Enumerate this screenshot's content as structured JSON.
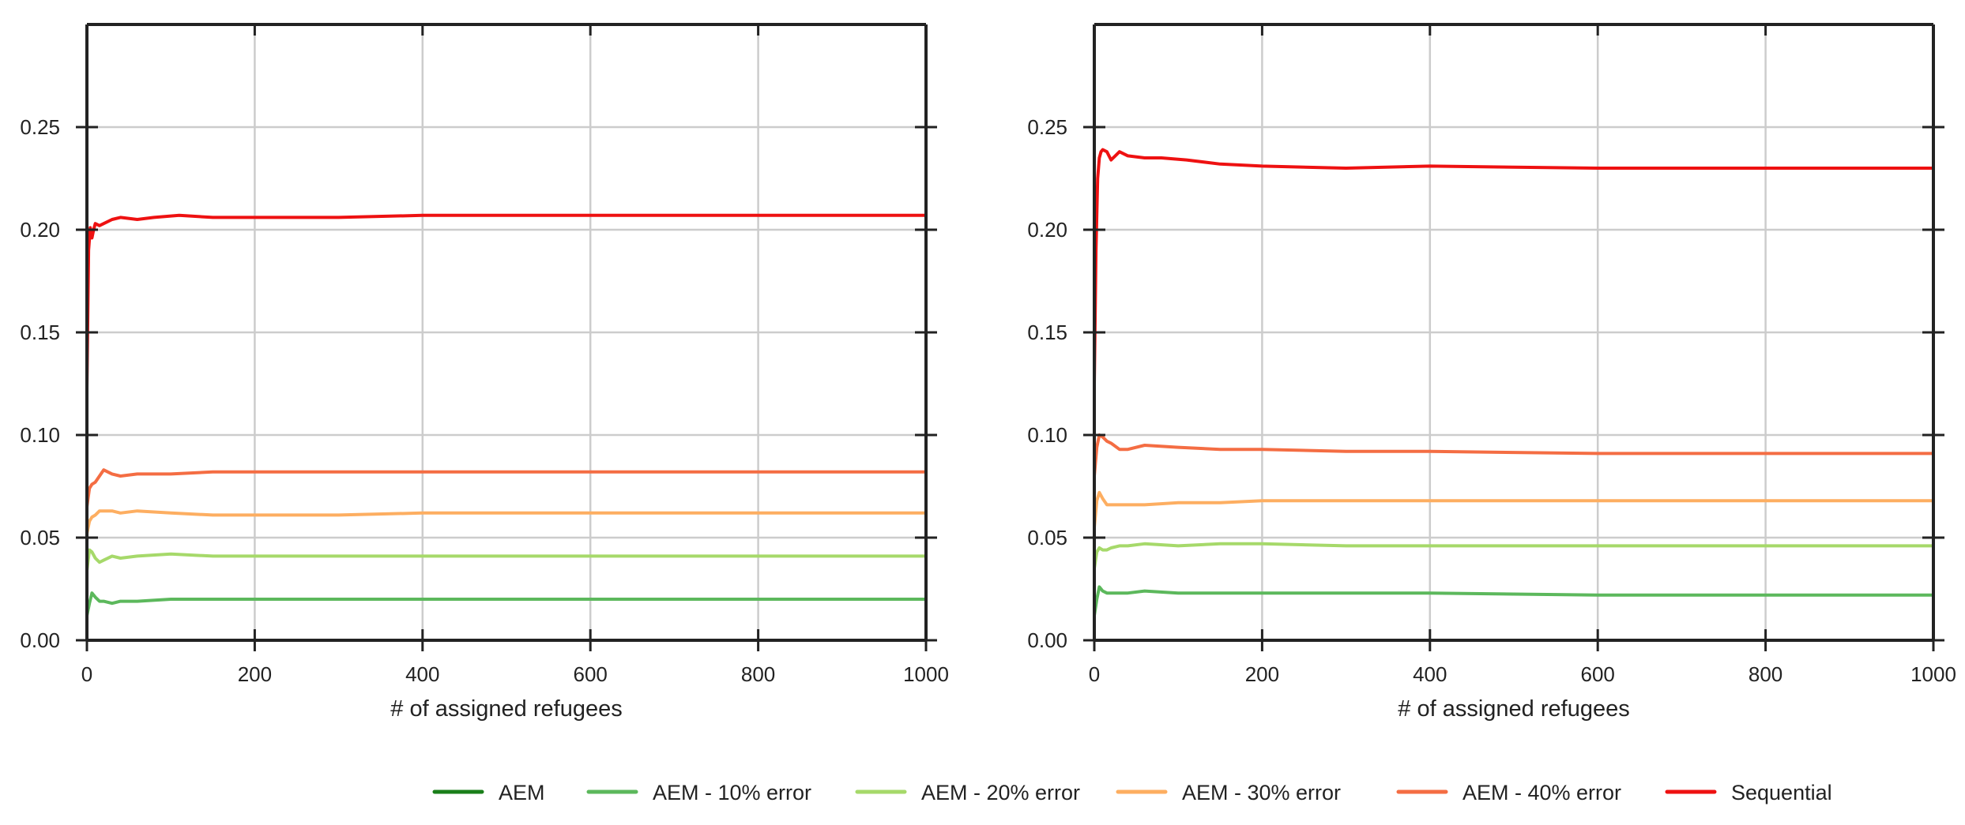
{
  "legend": {
    "placement": "bottom-center",
    "entries": [
      {
        "label": "AEM",
        "color": "#1a7f1a"
      },
      {
        "label": "AEM - 10% error",
        "color": "#5cb85c"
      },
      {
        "label": "AEM - 20% error",
        "color": "#a6d96a"
      },
      {
        "label": "AEM - 30% error",
        "color": "#fdae61"
      },
      {
        "label": "AEM - 40% error",
        "color": "#f46d43"
      },
      {
        "label": "Sequential",
        "color": "#ee1111"
      }
    ]
  },
  "chart_data": [
    {
      "type": "line",
      "title": "",
      "xlabel": "# of assigned refugees",
      "ylabel": "",
      "xlim": [
        0,
        1000
      ],
      "ylim": [
        0,
        0.3
      ],
      "xticks": [
        "0",
        "200",
        "400",
        "600",
        "800",
        "1000"
      ],
      "yticks": [
        "0.00",
        "0.05",
        "0.10",
        "0.15",
        "0.20",
        "0.25"
      ],
      "grid": true,
      "series": [
        {
          "name": "AEM",
          "color": "#1a7f1a",
          "x": [
            0,
            1000
          ],
          "y": [
            0.0,
            0.0
          ]
        },
        {
          "name": "AEM - 10% error",
          "color": "#5cb85c",
          "x": [
            0,
            3,
            6,
            10,
            15,
            20,
            30,
            40,
            60,
            100,
            150,
            200,
            300,
            400,
            600,
            800,
            1000
          ],
          "y": [
            0.012,
            0.018,
            0.023,
            0.021,
            0.019,
            0.019,
            0.018,
            0.019,
            0.019,
            0.02,
            0.02,
            0.02,
            0.02,
            0.02,
            0.02,
            0.02,
            0.02
          ]
        },
        {
          "name": "AEM - 20% error",
          "color": "#a6d96a",
          "x": [
            0,
            3,
            6,
            10,
            15,
            20,
            30,
            40,
            60,
            100,
            150,
            200,
            300,
            400,
            600,
            800,
            1000
          ],
          "y": [
            0.034,
            0.044,
            0.043,
            0.04,
            0.038,
            0.039,
            0.041,
            0.04,
            0.041,
            0.042,
            0.041,
            0.041,
            0.041,
            0.041,
            0.041,
            0.041,
            0.041
          ]
        },
        {
          "name": "AEM - 30% error",
          "color": "#fdae61",
          "x": [
            0,
            3,
            6,
            10,
            15,
            20,
            30,
            40,
            60,
            100,
            150,
            200,
            300,
            400,
            600,
            800,
            1000
          ],
          "y": [
            0.052,
            0.058,
            0.06,
            0.061,
            0.063,
            0.063,
            0.063,
            0.062,
            0.063,
            0.062,
            0.061,
            0.061,
            0.061,
            0.062,
            0.062,
            0.062,
            0.062
          ]
        },
        {
          "name": "AEM - 40% error",
          "color": "#f46d43",
          "x": [
            0,
            3,
            6,
            10,
            15,
            20,
            30,
            40,
            60,
            100,
            150,
            200,
            300,
            400,
            600,
            800,
            1000
          ],
          "y": [
            0.065,
            0.074,
            0.076,
            0.077,
            0.08,
            0.083,
            0.081,
            0.08,
            0.081,
            0.081,
            0.082,
            0.082,
            0.082,
            0.082,
            0.082,
            0.082,
            0.082
          ]
        },
        {
          "name": "Sequential",
          "color": "#ee1111",
          "x": [
            0,
            2,
            4,
            6,
            8,
            10,
            15,
            20,
            30,
            40,
            60,
            80,
            110,
            150,
            200,
            300,
            400,
            600,
            800,
            1000
          ],
          "y": [
            0.123,
            0.19,
            0.201,
            0.196,
            0.2,
            0.203,
            0.202,
            0.203,
            0.205,
            0.206,
            0.205,
            0.206,
            0.207,
            0.206,
            0.206,
            0.206,
            0.207,
            0.207,
            0.207,
            0.207
          ]
        }
      ]
    },
    {
      "type": "line",
      "title": "",
      "xlabel": "# of assigned refugees",
      "ylabel": "",
      "xlim": [
        0,
        1000
      ],
      "ylim": [
        0,
        0.3
      ],
      "xticks": [
        "0",
        "200",
        "400",
        "600",
        "800",
        "1000"
      ],
      "yticks": [
        "0.00",
        "0.05",
        "0.10",
        "0.15",
        "0.20",
        "0.25"
      ],
      "grid": true,
      "series": [
        {
          "name": "AEM",
          "color": "#1a7f1a",
          "x": [
            0,
            1000
          ],
          "y": [
            0.0,
            0.0
          ]
        },
        {
          "name": "AEM - 10% error",
          "color": "#5cb85c",
          "x": [
            0,
            3,
            6,
            10,
            15,
            20,
            30,
            40,
            60,
            100,
            150,
            200,
            300,
            400,
            600,
            800,
            1000
          ],
          "y": [
            0.012,
            0.02,
            0.026,
            0.024,
            0.023,
            0.023,
            0.023,
            0.023,
            0.024,
            0.023,
            0.023,
            0.023,
            0.023,
            0.023,
            0.022,
            0.022,
            0.022
          ]
        },
        {
          "name": "AEM - 20% error",
          "color": "#a6d96a",
          "x": [
            0,
            3,
            6,
            10,
            15,
            20,
            30,
            40,
            60,
            100,
            150,
            200,
            300,
            400,
            600,
            800,
            1000
          ],
          "y": [
            0.035,
            0.043,
            0.045,
            0.044,
            0.044,
            0.045,
            0.046,
            0.046,
            0.047,
            0.046,
            0.047,
            0.047,
            0.046,
            0.046,
            0.046,
            0.046,
            0.046
          ]
        },
        {
          "name": "AEM - 30% error",
          "color": "#fdae61",
          "x": [
            0,
            3,
            6,
            10,
            15,
            20,
            30,
            40,
            60,
            100,
            150,
            200,
            300,
            400,
            600,
            800,
            1000
          ],
          "y": [
            0.055,
            0.068,
            0.072,
            0.069,
            0.066,
            0.066,
            0.066,
            0.066,
            0.066,
            0.067,
            0.067,
            0.068,
            0.068,
            0.068,
            0.068,
            0.068,
            0.068
          ]
        },
        {
          "name": "AEM - 40% error",
          "color": "#f46d43",
          "x": [
            0,
            3,
            6,
            10,
            15,
            20,
            30,
            40,
            60,
            100,
            150,
            200,
            300,
            400,
            600,
            800,
            1000
          ],
          "y": [
            0.08,
            0.094,
            0.1,
            0.099,
            0.097,
            0.096,
            0.093,
            0.093,
            0.095,
            0.094,
            0.093,
            0.093,
            0.092,
            0.092,
            0.091,
            0.091,
            0.091
          ]
        },
        {
          "name": "Sequential",
          "color": "#ee1111",
          "x": [
            0,
            2,
            4,
            6,
            8,
            10,
            15,
            20,
            25,
            30,
            40,
            60,
            80,
            110,
            150,
            200,
            300,
            400,
            600,
            800,
            1000
          ],
          "y": [
            0.125,
            0.19,
            0.225,
            0.235,
            0.238,
            0.239,
            0.238,
            0.234,
            0.236,
            0.238,
            0.236,
            0.235,
            0.235,
            0.234,
            0.232,
            0.231,
            0.23,
            0.231,
            0.23,
            0.23,
            0.23
          ]
        }
      ]
    }
  ]
}
